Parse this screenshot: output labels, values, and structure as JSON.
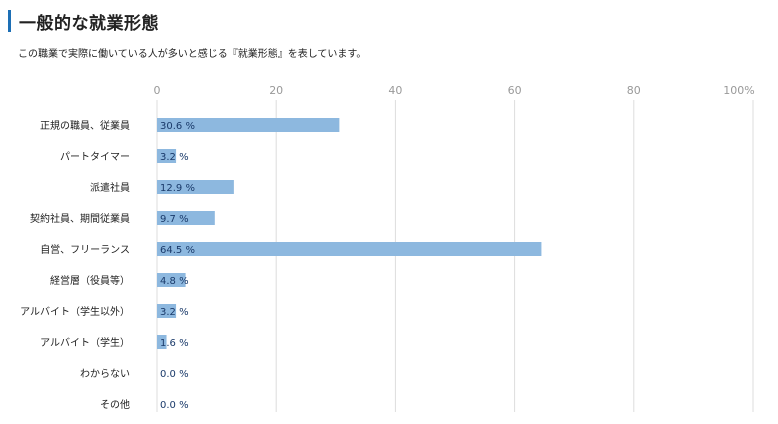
{
  "header": {
    "title": "一般的な就業形態",
    "subtitle": "この職業で実際に働いている人が多いと感じる『就業形態』を表しています。"
  },
  "chart_data": {
    "type": "bar",
    "orientation": "horizontal",
    "categories": [
      "正規の職員、従業員",
      "パートタイマー",
      "派遣社員",
      "契約社員、期間従業員",
      "自営、フリーランス",
      "経営層（役員等）",
      "アルバイト（学生以外）",
      "アルバイト（学生）",
      "わからない",
      "その他"
    ],
    "values": [
      30.6,
      3.2,
      12.9,
      9.7,
      64.5,
      4.8,
      3.2,
      1.6,
      0.0,
      0.0
    ],
    "value_labels": [
      "30.6 %",
      "3.2 %",
      "12.9 %",
      "9.7 %",
      "64.5 %",
      "4.8 %",
      "3.2 %",
      "1.6 %",
      "0.0 %",
      "0.0 %"
    ],
    "tick_labels": [
      "0",
      "20",
      "40",
      "60",
      "80",
      "100%"
    ],
    "xlim": [
      0,
      100
    ],
    "grid": true,
    "bar_color": "#8db8df",
    "grid_color": "#dddddd"
  }
}
